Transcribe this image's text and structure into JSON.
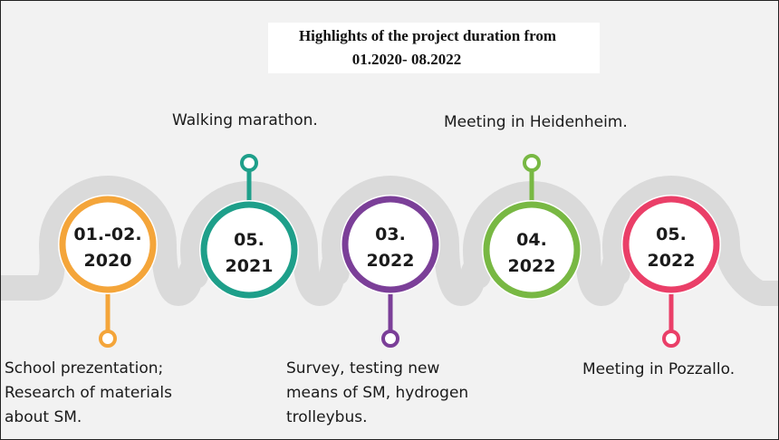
{
  "title": {
    "line1": "Highlights of the project duration from",
    "line2": "01.2020- 08.2022"
  },
  "milestones": [
    {
      "date_line1": "01.-02.",
      "date_line2": "2020",
      "color": "#f4a53a",
      "pin": "down",
      "caption": [
        "School prezentation;",
        "Research of materials",
        "about SM."
      ]
    },
    {
      "date_line1": "05.",
      "date_line2": "2021",
      "color": "#1e9f8a",
      "pin": "up",
      "caption": [
        "Walking marathon."
      ]
    },
    {
      "date_line1": "03.",
      "date_line2": "2022",
      "color": "#7b3f98",
      "pin": "down",
      "caption": [
        "Survey, testing new",
        "means of SM, hydrogen",
        "trolleybus."
      ]
    },
    {
      "date_line1": "04.",
      "date_line2": "2022",
      "color": "#78b843",
      "pin": "up",
      "caption": [
        "Meeting in Heidenheim."
      ]
    },
    {
      "date_line1": "05.",
      "date_line2": "2022",
      "color": "#ea3f68",
      "pin": "down",
      "caption": [
        "Meeting in Pozzallo."
      ]
    }
  ],
  "colors": {
    "road": "#dadada",
    "background": "#f2f2f2"
  }
}
